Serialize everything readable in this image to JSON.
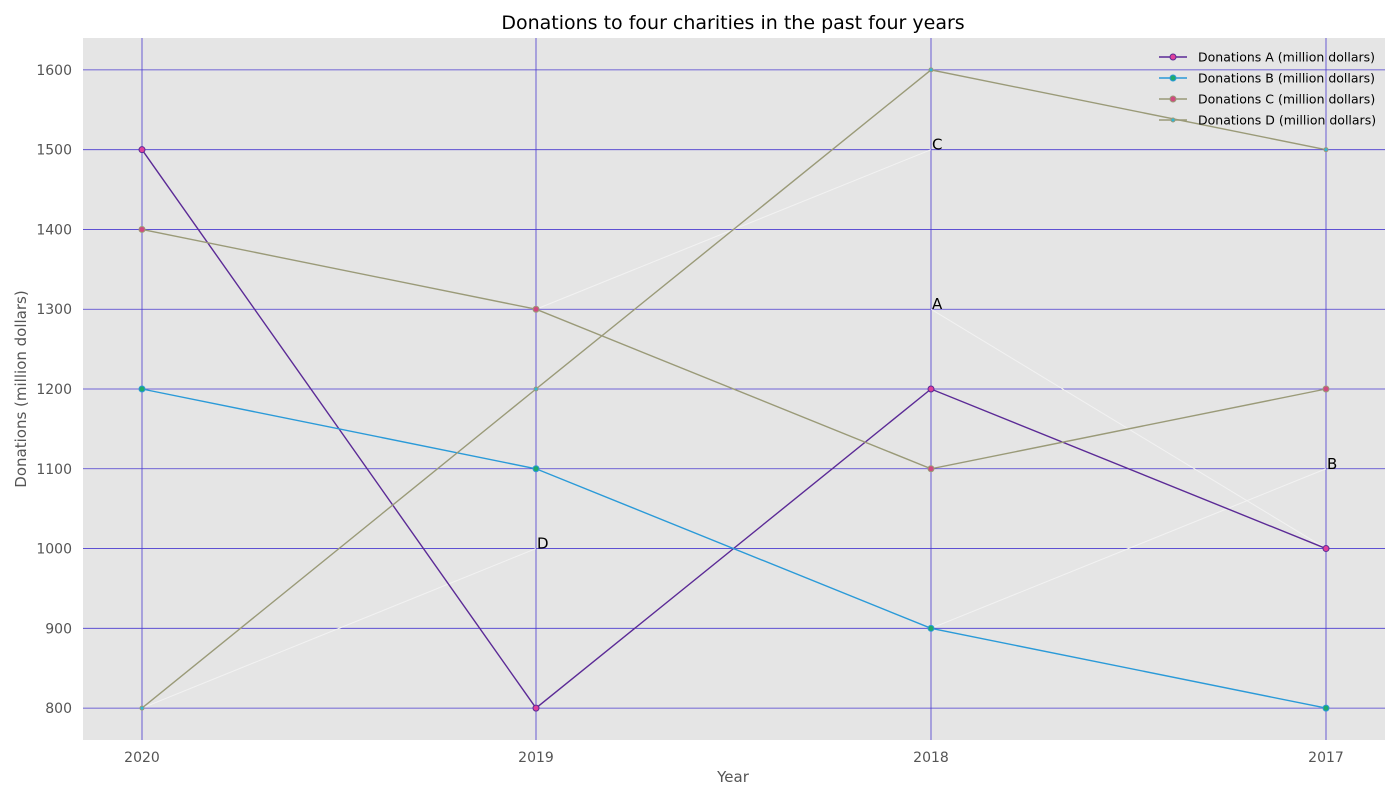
{
  "chart_data": {
    "type": "line",
    "title": "Donations to four charities in the past four years",
    "xlabel": "Year",
    "ylabel": "Donations (million dollars)",
    "categories": [
      "2020",
      "2019",
      "2018",
      "2017"
    ],
    "ylim": [
      760,
      1640
    ],
    "yticks": [
      800,
      900,
      1000,
      1100,
      1200,
      1300,
      1400,
      1500,
      1600
    ],
    "grid": true,
    "legend_position": "top-right",
    "series": [
      {
        "name": "Donations A (million dollars)",
        "values": [
          1500,
          800,
          1200,
          1000
        ],
        "color": "#5b2a96",
        "marker_color": "#e0409a"
      },
      {
        "name": "Donations B (million dollars)",
        "values": [
          1200,
          1100,
          900,
          800
        ],
        "color": "#2a9ad8",
        "marker_color": "#1faa6a"
      },
      {
        "name": "Donations C (million dollars)",
        "values": [
          1400,
          1300,
          1100,
          1200
        ],
        "color": "#9a9a78",
        "marker_color": "#d04a80"
      },
      {
        "name": "Donations D (million dollars)",
        "values": [
          800,
          1200,
          1600,
          1500
        ],
        "color": "#9a9a78",
        "marker_color": "#30b8d8"
      }
    ],
    "annotations": [
      {
        "text": "C",
        "x": "2018",
        "y": 1500
      },
      {
        "text": "A",
        "x": "2018",
        "y": 1300
      },
      {
        "text": "B",
        "x": "2017",
        "y": 1100
      },
      {
        "text": "D",
        "x": "2019",
        "y": 1000
      }
    ],
    "annotation_lines": [
      {
        "from": [
          "2019",
          1300
        ],
        "to": [
          "2018",
          1500
        ]
      },
      {
        "from": [
          "2018",
          1300
        ],
        "to": [
          "2017",
          1000
        ]
      },
      {
        "from": [
          "2018",
          900
        ],
        "to": [
          "2017",
          1100
        ]
      },
      {
        "from": [
          "2020",
          800
        ],
        "to": [
          "2019",
          1000
        ]
      }
    ],
    "colors": {
      "plot_background": "#e5e5e5",
      "grid": "#4a3ad0",
      "annotation_line": "#f2f2f2"
    }
  }
}
